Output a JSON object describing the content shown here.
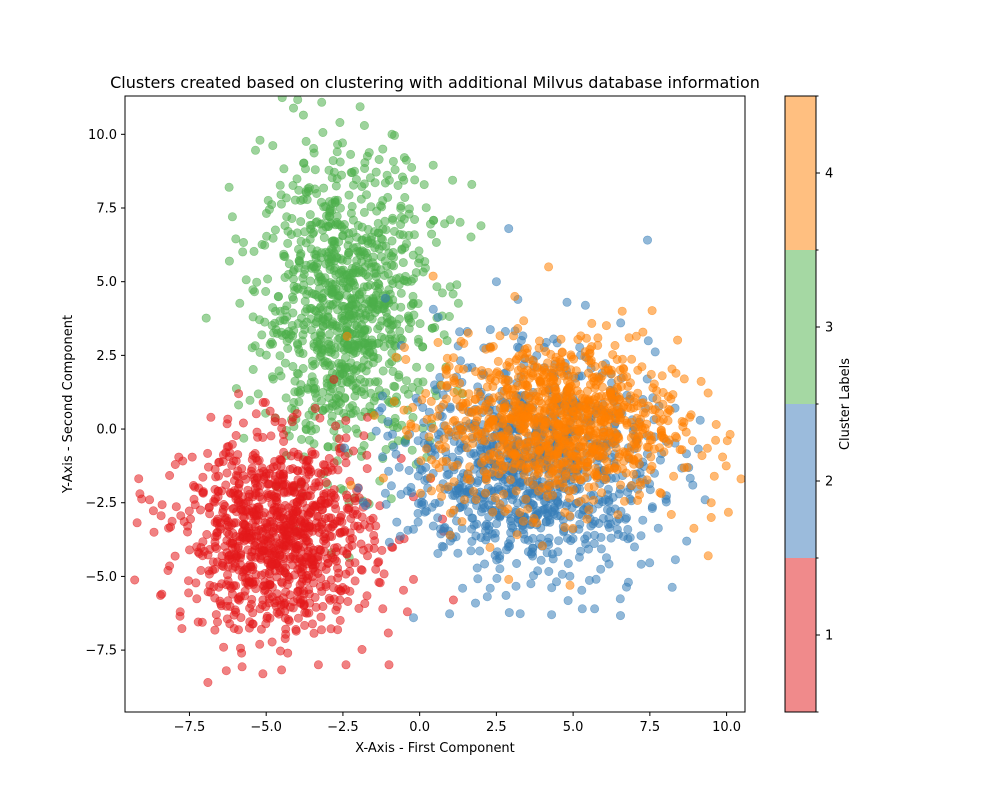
{
  "chart_data": {
    "type": "scatter",
    "title": "Clusters created based on clustering with additional Milvus database information",
    "xlabel": "X-Axis - First Component",
    "ylabel": "Y-Axis - Second Component",
    "xlim": [
      -9.6,
      10.6
    ],
    "ylim": [
      -9.6,
      11.3
    ],
    "x_ticks": [
      -7.5,
      -5.0,
      -2.5,
      0.0,
      2.5,
      5.0,
      7.5,
      10.0
    ],
    "y_ticks": [
      -7.5,
      -5.0,
      -2.5,
      0.0,
      2.5,
      5.0,
      7.5,
      10.0
    ],
    "grid": false,
    "marker_alpha": 0.55,
    "series": [
      {
        "label": "1",
        "color": "#e41a1c",
        "center": [
          -4.6,
          -3.6
        ],
        "spread": [
          1.5,
          1.6
        ],
        "points": [
          [
            -8.8,
            -2.4
          ],
          [
            -8.2,
            -4.8
          ],
          [
            -8.4,
            -5.6
          ],
          [
            -7.8,
            -6.2
          ],
          [
            -7.5,
            -4.1
          ],
          [
            -6.8,
            0.4
          ],
          [
            -6.9,
            -8.6
          ],
          [
            -6.3,
            -8.2
          ],
          [
            -5.8,
            -7.6
          ],
          [
            -5.9,
            1.2
          ],
          [
            -5.1,
            0.9
          ],
          [
            -4.3,
            -7.6
          ],
          [
            -3.3,
            -8.0
          ],
          [
            -2.4,
            -8.0
          ],
          [
            -1.0,
            -8.0
          ],
          [
            -1.2,
            -6.1
          ],
          [
            -0.2,
            -5.1
          ],
          [
            -0.2,
            -2.3
          ],
          [
            -0.6,
            -1.0
          ],
          [
            -1.7,
            0.4
          ],
          [
            -2.4,
            -0.3
          ],
          [
            -3.4,
            0.7
          ],
          [
            -3.8,
            -5.8
          ],
          [
            -2.6,
            -5.8
          ],
          [
            -1.7,
            -4.3
          ],
          [
            -7.2,
            -2.0
          ],
          [
            -6.4,
            -1.1
          ],
          [
            -4.7,
            -1.6
          ],
          [
            -3.9,
            -2.0
          ],
          [
            -5.6,
            -4.1
          ],
          [
            -4.8,
            -4.6
          ],
          [
            -3.6,
            -3.3
          ],
          [
            -6.1,
            -5.6
          ],
          [
            -5.2,
            -6.1
          ],
          [
            -2.9,
            -1.3
          ],
          [
            -1.3,
            -2.6
          ],
          [
            1.1,
            -5.8
          ],
          [
            -0.4,
            -6.2
          ]
        ]
      },
      {
        "label": "2",
        "color": "#377eb8",
        "center": [
          3.6,
          -1.3
        ],
        "spread": [
          2.0,
          1.8
        ],
        "points": [
          [
            -0.2,
            -6.4
          ],
          [
            1.4,
            -5.4
          ],
          [
            2.3,
            -5.4
          ],
          [
            4.3,
            -6.3
          ],
          [
            5.3,
            -6.1
          ],
          [
            5.7,
            -6.1
          ],
          [
            6.8,
            -5.2
          ],
          [
            7.0,
            -4.0
          ],
          [
            8.7,
            -3.8
          ],
          [
            9.3,
            -2.4
          ],
          [
            8.9,
            -1.9
          ],
          [
            2.9,
            6.8
          ],
          [
            2.5,
            5.0
          ],
          [
            5.4,
            4.2
          ],
          [
            4.8,
            4.3
          ],
          [
            3.2,
            4.4
          ],
          [
            1.3,
            3.3
          ],
          [
            0.6,
            3.8
          ],
          [
            0.2,
            -1.3
          ],
          [
            -0.4,
            -2.1
          ],
          [
            -0.2,
            -3.4
          ],
          [
            1.0,
            -3.8
          ],
          [
            2.1,
            -2.4
          ],
          [
            3.4,
            -1.1
          ],
          [
            4.5,
            -2.5
          ],
          [
            5.7,
            -3.6
          ],
          [
            6.5,
            -2.2
          ],
          [
            2.9,
            0.9
          ],
          [
            4.3,
            1.9
          ],
          [
            1.8,
            0.2
          ],
          [
            3.9,
            -3.9
          ],
          [
            5.0,
            -1.0
          ],
          [
            2.6,
            -4.4
          ],
          [
            1.2,
            -2.1
          ],
          [
            6.3,
            -0.4
          ],
          [
            4.1,
            0.3
          ]
        ]
      },
      {
        "label": "3",
        "color": "#4daf4a",
        "center": [
          -2.4,
          4.1
        ],
        "spread": [
          1.4,
          2.5
        ],
        "points": [
          [
            -2.6,
            10.4
          ],
          [
            -1.8,
            10.3
          ],
          [
            -1.2,
            9.5
          ],
          [
            -0.9,
            10.0
          ],
          [
            -5.2,
            9.8
          ],
          [
            -6.1,
            7.2
          ],
          [
            -6.2,
            5.7
          ],
          [
            -5.2,
            2.6
          ],
          [
            -4.1,
            0.9
          ],
          [
            1.7,
            8.3
          ],
          [
            2.0,
            6.9
          ],
          [
            1.0,
            7.1
          ],
          [
            -0.8,
            8.8
          ],
          [
            0.5,
            1.3
          ],
          [
            -0.7,
            -0.4
          ],
          [
            -1.2,
            -1.0
          ],
          [
            -2.9,
            7.0
          ],
          [
            -2.0,
            5.3
          ],
          [
            -3.5,
            4.6
          ],
          [
            -2.1,
            2.8
          ],
          [
            -1.1,
            6.2
          ],
          [
            -3.4,
            8.8
          ],
          [
            -4.3,
            6.3
          ],
          [
            -1.3,
            3.5
          ],
          [
            -2.7,
            1.6
          ],
          [
            -0.4,
            5.0
          ],
          [
            -3.8,
            3.2
          ],
          [
            -1.9,
            7.8
          ],
          [
            0.8,
            3.2
          ],
          [
            -2.4,
            0.4
          ],
          [
            -4.6,
            4.5
          ],
          [
            -0.1,
            2.1
          ]
        ]
      },
      {
        "label": "4",
        "color": "#ff7f00",
        "center": [
          4.4,
          0.2
        ],
        "spread": [
          2.0,
          1.4
        ],
        "points": [
          [
            4.2,
            5.5
          ],
          [
            6.6,
            4.0
          ],
          [
            3.1,
            4.5
          ],
          [
            2.7,
            -0.2
          ],
          [
            3.5,
            2.0
          ],
          [
            4.8,
            1.0
          ],
          [
            5.8,
            -0.9
          ],
          [
            6.5,
            0.5
          ],
          [
            7.6,
            1.4
          ],
          [
            8.1,
            1.1
          ],
          [
            8.8,
            0.4
          ],
          [
            9.2,
            -0.9
          ],
          [
            9.6,
            -1.6
          ],
          [
            9.5,
            -2.5
          ],
          [
            9.5,
            -3.0
          ],
          [
            9.4,
            -4.3
          ],
          [
            8.2,
            -2.9
          ],
          [
            7.2,
            -1.9
          ],
          [
            4.9,
            -5.3
          ],
          [
            2.9,
            -5.1
          ],
          [
            1.0,
            -3.6
          ],
          [
            1.6,
            1.2
          ],
          [
            0.9,
            2.4
          ],
          [
            5.2,
            -0.1
          ],
          [
            4.1,
            0.7
          ],
          [
            3.3,
            -1.2
          ],
          [
            6.1,
            -1.1
          ],
          [
            5.5,
            1.9
          ],
          [
            2.4,
            2.8
          ],
          [
            7.0,
            -0.5
          ]
        ]
      }
    ],
    "colorbar": {
      "label": "Cluster Labels",
      "ticks": [
        "1",
        "2",
        "3",
        "4"
      ],
      "colors": [
        "#f08a8b",
        "#9bbbdc",
        "#a5d8a3",
        "#ffbf80"
      ]
    }
  }
}
